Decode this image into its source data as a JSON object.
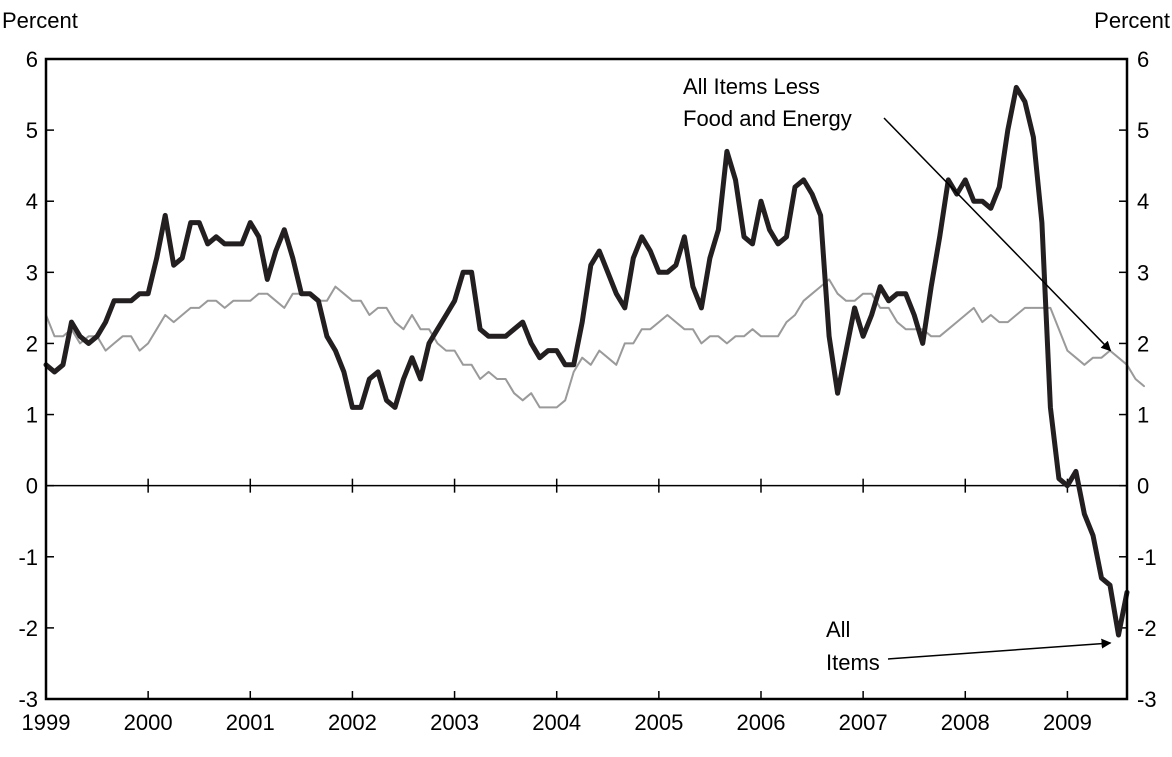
{
  "chart_data": {
    "type": "line",
    "title": "",
    "ylabel_left": "Percent",
    "ylabel_right": "Percent",
    "xlabel": "",
    "x_ticks": [
      "1999",
      "2000",
      "2001",
      "2002",
      "2003",
      "2004",
      "2005",
      "2006",
      "2007",
      "2008",
      "2009"
    ],
    "y_ticks": [
      "-3",
      "-2",
      "-1",
      "0",
      "1",
      "2",
      "3",
      "4",
      "5",
      "6"
    ],
    "xlim": [
      "1999-01",
      "2009-08"
    ],
    "ylim": [
      -3,
      6
    ],
    "grid": false,
    "legend": "none",
    "x_start": "1999-01",
    "x_step": "month",
    "series": [
      {
        "name": "All Items",
        "color": "#231f20",
        "values": [
          1.7,
          1.6,
          1.7,
          2.3,
          2.1,
          2.0,
          2.1,
          2.3,
          2.6,
          2.6,
          2.6,
          2.7,
          2.7,
          3.2,
          3.8,
          3.1,
          3.2,
          3.7,
          3.7,
          3.4,
          3.5,
          3.4,
          3.4,
          3.4,
          3.7,
          3.5,
          2.9,
          3.3,
          3.6,
          3.2,
          2.7,
          2.7,
          2.6,
          2.1,
          1.9,
          1.6,
          1.1,
          1.1,
          1.5,
          1.6,
          1.2,
          1.1,
          1.5,
          1.8,
          1.5,
          2.0,
          2.2,
          2.4,
          2.6,
          3.0,
          3.0,
          2.2,
          2.1,
          2.1,
          2.1,
          2.2,
          2.3,
          2.0,
          1.8,
          1.9,
          1.9,
          1.7,
          1.7,
          2.3,
          3.1,
          3.3,
          3.0,
          2.7,
          2.5,
          3.2,
          3.5,
          3.3,
          3.0,
          3.0,
          3.1,
          3.5,
          2.8,
          2.5,
          3.2,
          3.6,
          4.7,
          4.3,
          3.5,
          3.4,
          4.0,
          3.6,
          3.4,
          3.5,
          4.2,
          4.3,
          4.1,
          3.8,
          2.1,
          1.3,
          1.9,
          2.5,
          2.1,
          2.4,
          2.8,
          2.6,
          2.7,
          2.7,
          2.4,
          2.0,
          2.8,
          3.5,
          4.3,
          4.1,
          4.3,
          4.0,
          4.0,
          3.9,
          4.2,
          5.0,
          5.6,
          5.4,
          4.9,
          3.7,
          1.1,
          0.1,
          0.0,
          0.2,
          -0.4,
          -0.7,
          -1.3,
          -1.4,
          -2.1,
          -1.5
        ]
      },
      {
        "name": "All Items Less Food and Energy",
        "color": "#9a9a9a",
        "values": [
          2.4,
          2.1,
          2.1,
          2.2,
          2.0,
          2.1,
          2.1,
          1.9,
          2.0,
          2.1,
          2.1,
          1.9,
          2.0,
          2.2,
          2.4,
          2.3,
          2.4,
          2.5,
          2.5,
          2.6,
          2.6,
          2.5,
          2.6,
          2.6,
          2.6,
          2.7,
          2.7,
          2.6,
          2.5,
          2.7,
          2.7,
          2.7,
          2.6,
          2.6,
          2.8,
          2.7,
          2.6,
          2.6,
          2.4,
          2.5,
          2.5,
          2.3,
          2.2,
          2.4,
          2.2,
          2.2,
          2.0,
          1.9,
          1.9,
          1.7,
          1.7,
          1.5,
          1.6,
          1.5,
          1.5,
          1.3,
          1.2,
          1.3,
          1.1,
          1.1,
          1.1,
          1.2,
          1.6,
          1.8,
          1.7,
          1.9,
          1.8,
          1.7,
          2.0,
          2.0,
          2.2,
          2.2,
          2.3,
          2.4,
          2.3,
          2.2,
          2.2,
          2.0,
          2.1,
          2.1,
          2.0,
          2.1,
          2.1,
          2.2,
          2.1,
          2.1,
          2.1,
          2.3,
          2.4,
          2.6,
          2.7,
          2.8,
          2.9,
          2.7,
          2.6,
          2.6,
          2.7,
          2.7,
          2.5,
          2.5,
          2.3,
          2.2,
          2.2,
          2.2,
          2.1,
          2.1,
          2.2,
          2.3,
          2.4,
          2.5,
          2.3,
          2.4,
          2.3,
          2.3,
          2.4,
          2.5,
          2.5,
          2.5,
          2.5,
          2.2,
          1.9,
          1.8,
          1.7,
          1.8,
          1.8,
          1.9,
          1.8,
          1.7,
          1.5,
          1.4
        ]
      }
    ],
    "annotations": [
      {
        "id": "core",
        "lines": [
          "All Items Less",
          "Food and Energy"
        ],
        "points_to": {
          "series": 1,
          "date": "2009-07"
        }
      },
      {
        "id": "all",
        "lines": [
          "All",
          "Items"
        ],
        "points_to": {
          "series": 0,
          "date": "2009-07"
        }
      }
    ]
  }
}
